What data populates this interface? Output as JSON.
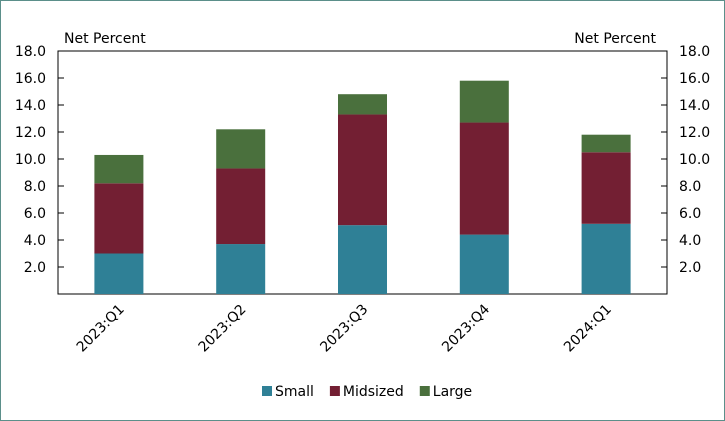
{
  "chart_data": {
    "type": "bar",
    "stacked": true,
    "categories": [
      "2023:Q1",
      "2023:Q2",
      "2023:Q3",
      "2023:Q4",
      "2024:Q1"
    ],
    "series": [
      {
        "name": "Small",
        "values": [
          3.0,
          3.7,
          5.1,
          4.4,
          5.2
        ],
        "color": "#2f8096"
      },
      {
        "name": "Midsized",
        "values": [
          5.2,
          5.6,
          8.2,
          8.3,
          5.3
        ],
        "color": "#731f33"
      },
      {
        "name": "Large",
        "values": [
          2.1,
          2.9,
          1.5,
          3.1,
          1.3
        ],
        "color": "#4a703d"
      }
    ],
    "ylabel_left": "Net Percent",
    "ylabel_right": "Net Percent",
    "ylim": [
      0,
      18
    ],
    "yticks": [
      "2.0",
      "4.0",
      "6.0",
      "8.0",
      "10.0",
      "12.0",
      "14.0",
      "16.0",
      "18.0"
    ],
    "ytick_values": [
      2,
      4,
      6,
      8,
      10,
      12,
      14,
      16,
      18
    ],
    "grid": false,
    "legend_position": "bottom-center"
  }
}
